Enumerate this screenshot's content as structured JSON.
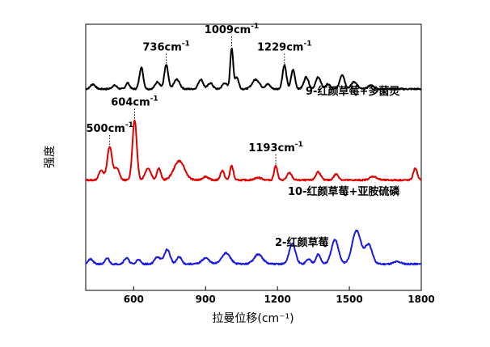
{
  "chart_data": {
    "type": "line",
    "title": "",
    "xlabel": "拉曼位移(cm⁻¹)",
    "ylabel": "强度",
    "xlim": [
      400,
      1800
    ],
    "xticks": [
      600,
      900,
      1200,
      1500,
      1800
    ],
    "xtick_labels": [
      "600",
      "900",
      "1200",
      "1500",
      "1800"
    ],
    "y_ticks_shown": false,
    "grid": false,
    "series": [
      {
        "name": "9-红颜草莓+多菌灵",
        "color": "#000000",
        "label_text": "9-红颜草莓+多菌灵",
        "baseline": 0.78,
        "noise_seed": 7,
        "peaks": [
          {
            "x": 430,
            "h": 0.02,
            "w": 10
          },
          {
            "x": 520,
            "h": 0.015,
            "w": 10
          },
          {
            "x": 575,
            "h": 0.025,
            "w": 8
          },
          {
            "x": 632,
            "h": 0.09,
            "w": 8
          },
          {
            "x": 700,
            "h": 0.03,
            "w": 10
          },
          {
            "x": 736,
            "h": 0.1,
            "w": 8
          },
          {
            "x": 780,
            "h": 0.04,
            "w": 12
          },
          {
            "x": 880,
            "h": 0.04,
            "w": 10
          },
          {
            "x": 920,
            "h": 0.025,
            "w": 10
          },
          {
            "x": 980,
            "h": 0.025,
            "w": 10
          },
          {
            "x": 1009,
            "h": 0.17,
            "w": 6
          },
          {
            "x": 1030,
            "h": 0.05,
            "w": 8
          },
          {
            "x": 1110,
            "h": 0.04,
            "w": 15
          },
          {
            "x": 1160,
            "h": 0.02,
            "w": 10
          },
          {
            "x": 1229,
            "h": 0.1,
            "w": 8
          },
          {
            "x": 1265,
            "h": 0.08,
            "w": 8
          },
          {
            "x": 1320,
            "h": 0.05,
            "w": 10
          },
          {
            "x": 1370,
            "h": 0.05,
            "w": 10
          },
          {
            "x": 1410,
            "h": 0.02,
            "w": 10
          },
          {
            "x": 1470,
            "h": 0.06,
            "w": 10
          },
          {
            "x": 1520,
            "h": 0.03,
            "w": 12
          },
          {
            "x": 1590,
            "h": 0.015,
            "w": 12
          }
        ]
      },
      {
        "name": "10-红颜草莓+亚胺硫磷",
        "color": "#dd0000",
        "label_text": "10-红颜草莓+亚胺硫磷",
        "baseline": 0.4,
        "noise_seed": 13,
        "peaks": [
          {
            "x": 465,
            "h": 0.04,
            "w": 10
          },
          {
            "x": 500,
            "h": 0.14,
            "w": 10
          },
          {
            "x": 530,
            "h": 0.05,
            "w": 10
          },
          {
            "x": 604,
            "h": 0.25,
            "w": 9
          },
          {
            "x": 660,
            "h": 0.05,
            "w": 12
          },
          {
            "x": 705,
            "h": 0.05,
            "w": 8
          },
          {
            "x": 790,
            "h": 0.08,
            "w": 22
          },
          {
            "x": 900,
            "h": 0.015,
            "w": 12
          },
          {
            "x": 970,
            "h": 0.04,
            "w": 8
          },
          {
            "x": 1009,
            "h": 0.06,
            "w": 7
          },
          {
            "x": 1120,
            "h": 0.01,
            "w": 15
          },
          {
            "x": 1193,
            "h": 0.06,
            "w": 7
          },
          {
            "x": 1250,
            "h": 0.03,
            "w": 10
          },
          {
            "x": 1370,
            "h": 0.035,
            "w": 10
          },
          {
            "x": 1445,
            "h": 0.025,
            "w": 10
          },
          {
            "x": 1600,
            "h": 0.015,
            "w": 15
          },
          {
            "x": 1775,
            "h": 0.05,
            "w": 8
          }
        ]
      },
      {
        "name": "2-红颜草莓",
        "color": "#1a1ae0",
        "label_text": "2-红颜草莓",
        "baseline": 0.05,
        "noise_seed": 21,
        "peaks": [
          {
            "x": 420,
            "h": 0.02,
            "w": 10
          },
          {
            "x": 490,
            "h": 0.025,
            "w": 8
          },
          {
            "x": 570,
            "h": 0.025,
            "w": 10
          },
          {
            "x": 620,
            "h": 0.02,
            "w": 8
          },
          {
            "x": 700,
            "h": 0.03,
            "w": 12
          },
          {
            "x": 740,
            "h": 0.06,
            "w": 12
          },
          {
            "x": 790,
            "h": 0.03,
            "w": 10
          },
          {
            "x": 900,
            "h": 0.025,
            "w": 15
          },
          {
            "x": 985,
            "h": 0.045,
            "w": 18
          },
          {
            "x": 1120,
            "h": 0.04,
            "w": 18
          },
          {
            "x": 1262,
            "h": 0.085,
            "w": 13
          },
          {
            "x": 1330,
            "h": 0.02,
            "w": 10
          },
          {
            "x": 1370,
            "h": 0.04,
            "w": 10
          },
          {
            "x": 1440,
            "h": 0.1,
            "w": 15
          },
          {
            "x": 1530,
            "h": 0.14,
            "w": 18
          },
          {
            "x": 1580,
            "h": 0.08,
            "w": 15
          },
          {
            "x": 1700,
            "h": 0.01,
            "w": 15
          }
        ]
      }
    ],
    "annotations": [
      {
        "text": "736cm",
        "sup": "-1",
        "x": 736,
        "series": 0
      },
      {
        "text": "1009cm",
        "sup": "-1",
        "x": 1009,
        "series": 0
      },
      {
        "text": "1229cm",
        "sup": "-1",
        "x": 1229,
        "series": 0
      },
      {
        "text": "500cm",
        "sup": "-1",
        "x": 500,
        "series": 1
      },
      {
        "text": "604cm",
        "sup": "-1",
        "x": 604,
        "series": 1
      },
      {
        "text": "1193cm",
        "sup": "-1",
        "x": 1193,
        "series": 1
      }
    ]
  }
}
